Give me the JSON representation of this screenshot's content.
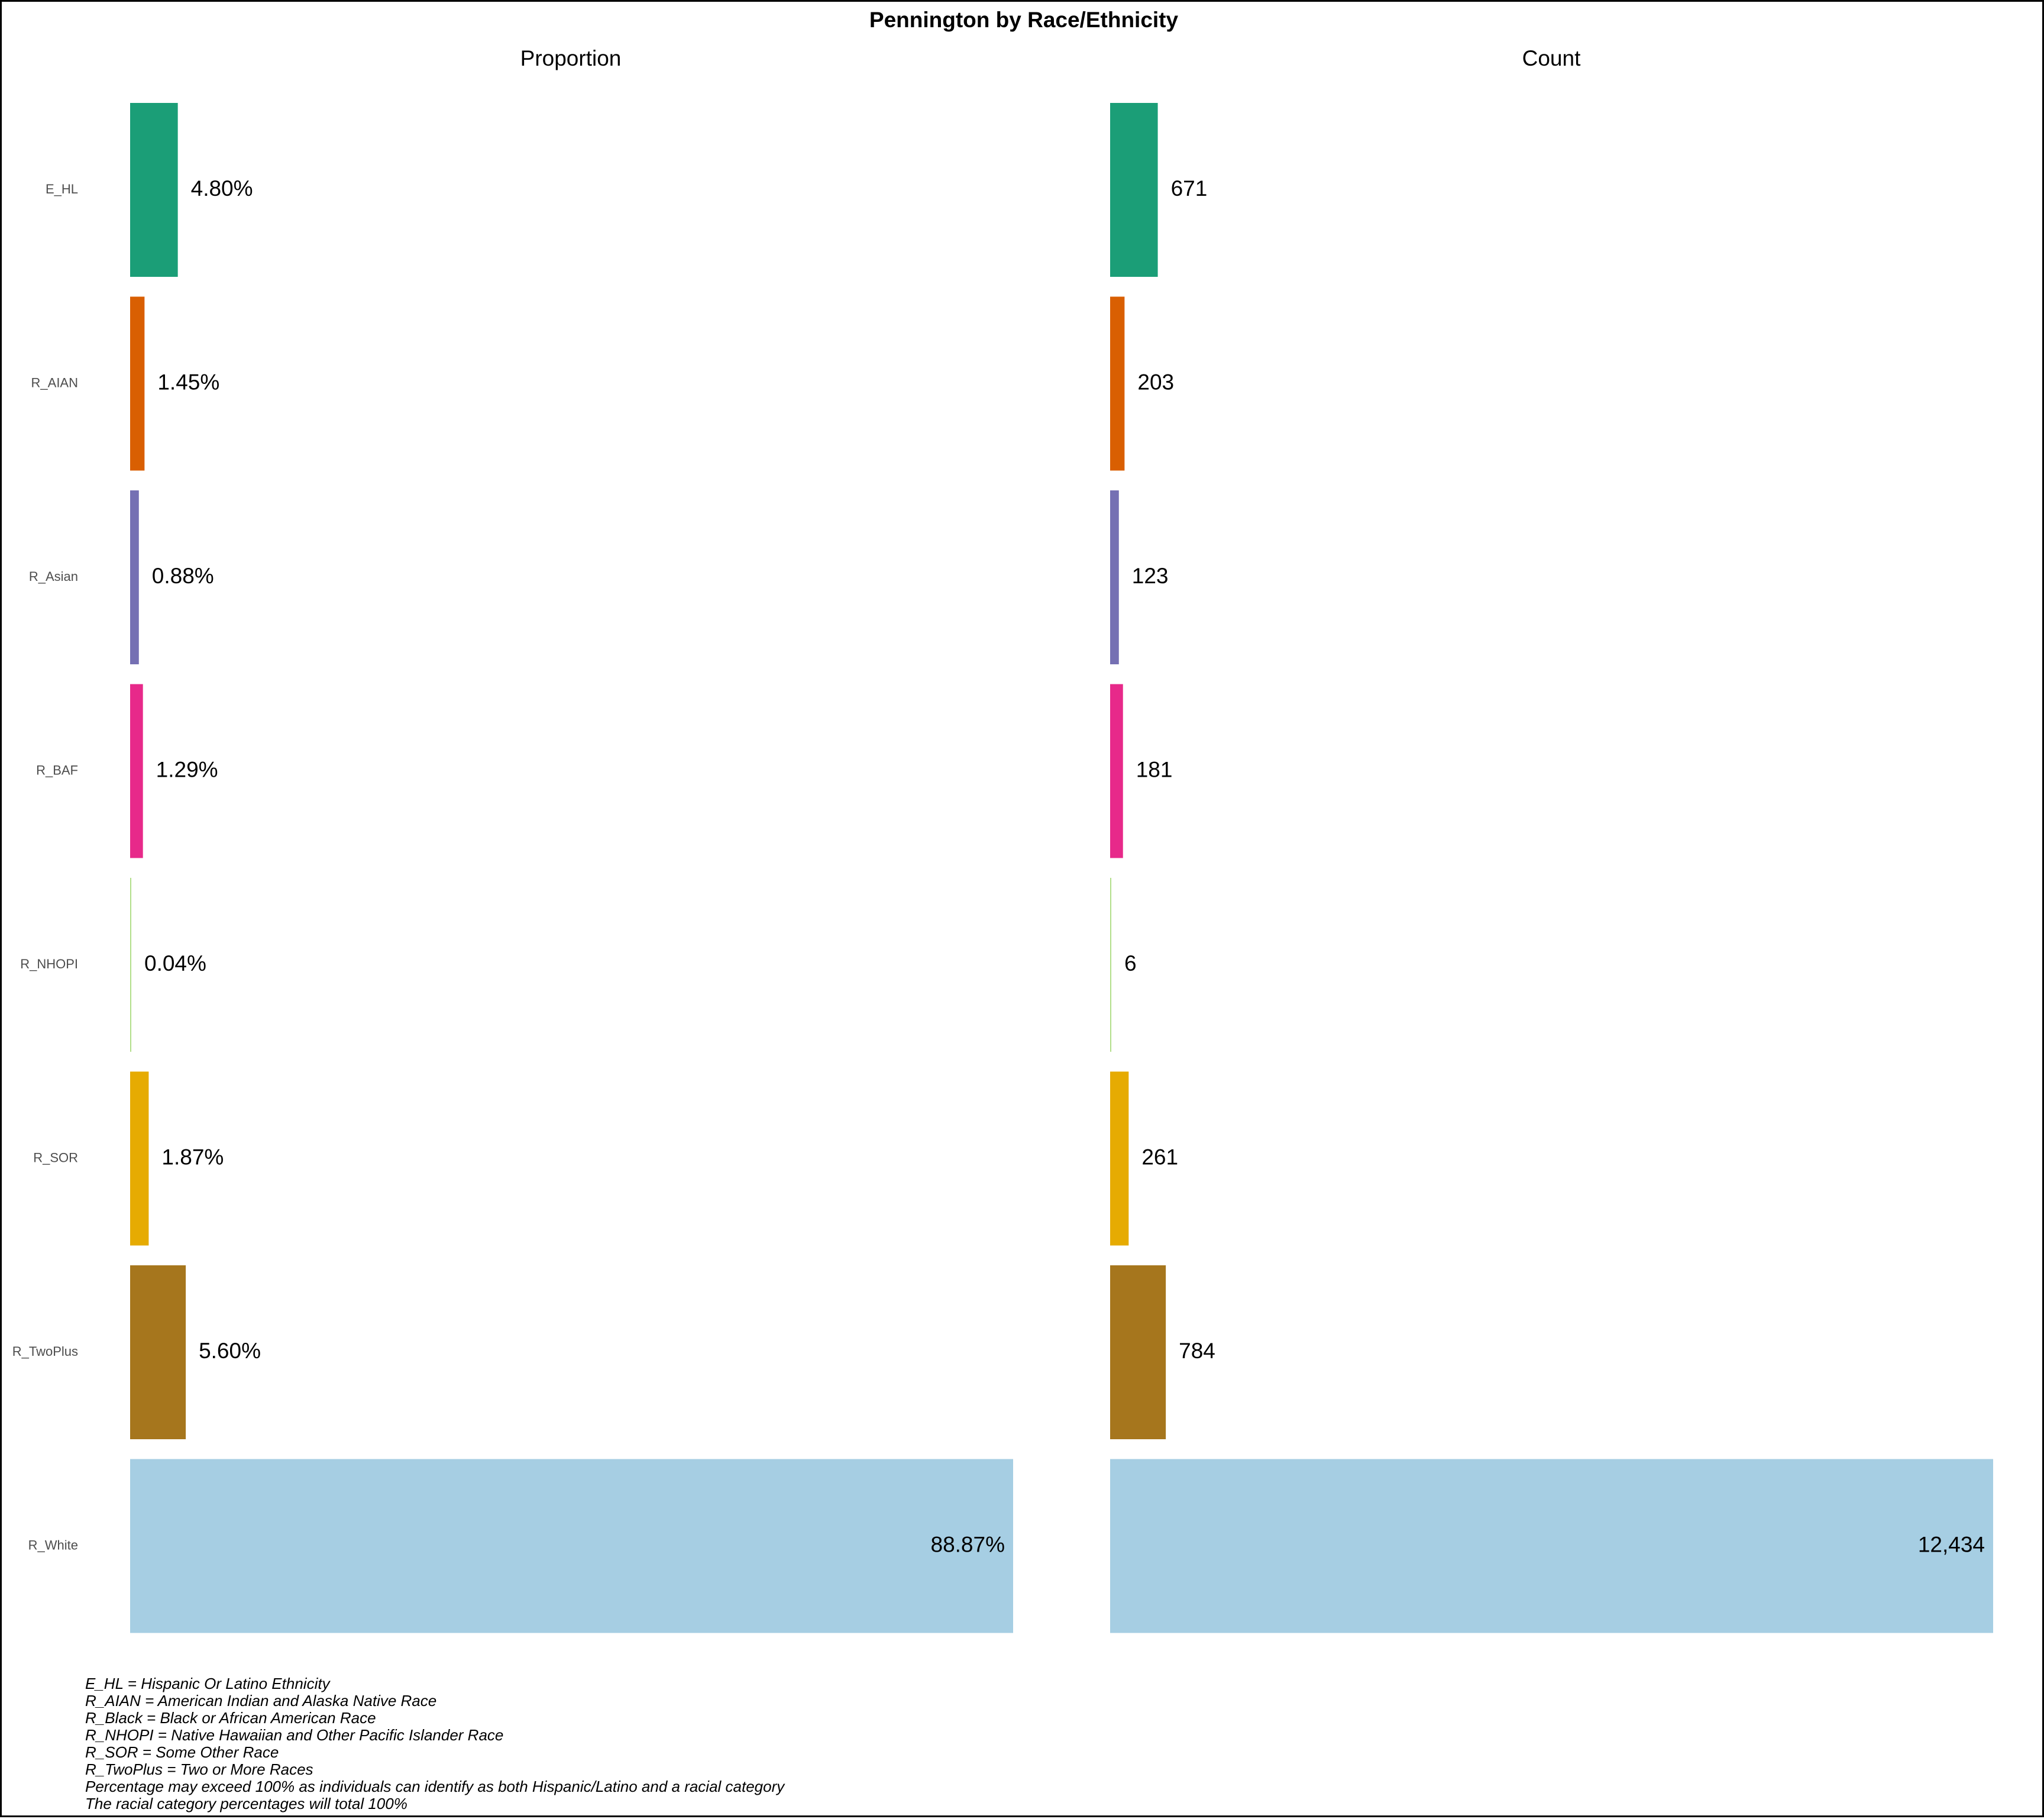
{
  "chart_data": {
    "type": "bar",
    "orientation": "horizontal",
    "title": "Pennington by Race/Ethnicity",
    "categories": [
      "E_HL",
      "R_AIAN",
      "R_Asian",
      "R_BAF",
      "R_NHOPI",
      "R_SOR",
      "R_TwoPlus",
      "R_White"
    ],
    "colors": [
      "#1B9E77",
      "#D95F02",
      "#7570B3",
      "#E7298A",
      "#B2DF8A",
      "#E6AB02",
      "#A6761D",
      "#A6CEE3"
    ],
    "panels": [
      {
        "title": "Proportion",
        "values": [
          4.8,
          1.45,
          0.88,
          1.29,
          0.04,
          1.87,
          5.6,
          88.87
        ],
        "labels": [
          "4.80%",
          "1.45%",
          "0.88%",
          "1.29%",
          "0.04%",
          "1.87%",
          "5.60%",
          "88.87%"
        ],
        "xlim": [
          0,
          88.87
        ]
      },
      {
        "title": "Count",
        "values": [
          671,
          203,
          123,
          181,
          6,
          261,
          784,
          12434
        ],
        "labels": [
          "671",
          "203",
          "123",
          "181",
          "6",
          "261",
          "784",
          "12,434"
        ],
        "xlim": [
          0,
          12434
        ]
      }
    ],
    "grid": false,
    "legend": "none"
  },
  "caption": [
    "E_HL = Hispanic Or Latino Ethnicity",
    "R_AIAN = American Indian and Alaska Native Race",
    "R_Black = Black or African American Race",
    "R_NHOPI = Native Hawaiian and Other Pacific Islander Race",
    "R_SOR = Some Other Race",
    "R_TwoPlus = Two or More Races",
    "Percentage may exceed 100% as individuals can identify as both Hispanic/Latino and a racial category",
    "The racial category percentages will total 100%"
  ]
}
